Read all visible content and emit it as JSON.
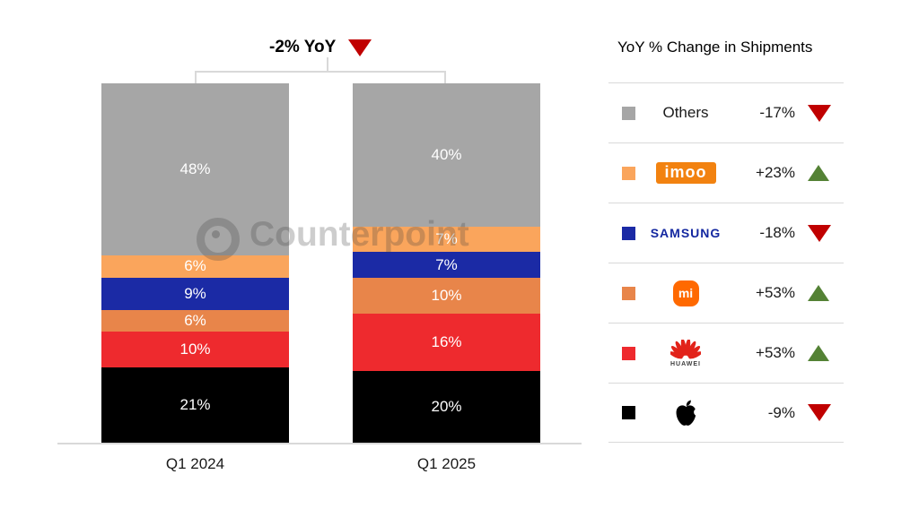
{
  "chart_data": {
    "type": "bar",
    "stacked": true,
    "unit": "%",
    "title": "",
    "categories": [
      "Q1 2024",
      "Q1 2025"
    ],
    "series": [
      {
        "name": "Others",
        "color": "#a6a6a6",
        "values": [
          48,
          40
        ]
      },
      {
        "name": "imoo",
        "color": "#faa55c",
        "values": [
          6,
          7
        ]
      },
      {
        "name": "Samsung",
        "color": "#1b2aa5",
        "values": [
          9,
          7
        ]
      },
      {
        "name": "Xiaomi",
        "color": "#e8854a",
        "values": [
          6,
          10
        ]
      },
      {
        "name": "Huawei",
        "color": "#ee2a2e",
        "values": [
          10,
          16
        ]
      },
      {
        "name": "Apple",
        "color": "#000000",
        "values": [
          21,
          20
        ]
      }
    ],
    "total_annotation": {
      "label": "-2% YoY",
      "trend": "down"
    },
    "ylim": [
      0,
      100
    ],
    "grid": false,
    "legend_position": "right"
  },
  "watermark": {
    "text": "Counterpoint"
  },
  "legend": {
    "title": "YoY % Change in Shipments",
    "trend_colors": {
      "up": "#548235",
      "down": "#c00000"
    },
    "rows": [
      {
        "brand": "Others",
        "brand_label": "Others",
        "color": "#a6a6a6",
        "change": "-17%",
        "trend": "down"
      },
      {
        "brand": "imoo",
        "brand_label": "imoo",
        "color": "#faa55c",
        "change": "+23%",
        "trend": "up"
      },
      {
        "brand": "Samsung",
        "brand_label": "SAMSUNG",
        "color": "#1b2aa5",
        "change": "-18%",
        "trend": "down"
      },
      {
        "brand": "Xiaomi",
        "brand_label": "mi",
        "color": "#e8854a",
        "change": "+53%",
        "trend": "up"
      },
      {
        "brand": "Huawei",
        "brand_label": "HUAWEI",
        "color": "#ee2a2e",
        "change": "+53%",
        "trend": "up"
      },
      {
        "brand": "Apple",
        "brand_label": "",
        "color": "#000000",
        "change": "-9%",
        "trend": "down"
      }
    ]
  }
}
